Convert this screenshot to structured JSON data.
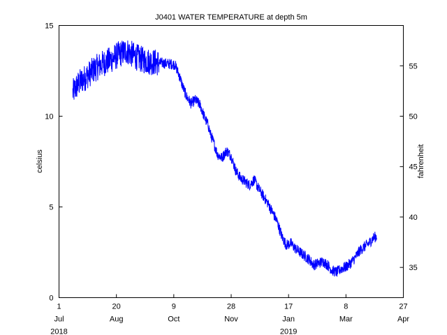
{
  "chart_data": {
    "type": "line",
    "title": "J0401 WATER TEMPERATURE at depth 5m",
    "ylabel": "celsius",
    "ylabel_right": "fahrenheit",
    "xlabel": "",
    "ylim": [
      0,
      15
    ],
    "ylim_right": [
      32,
      59
    ],
    "y_ticks": [
      0,
      5,
      10,
      15
    ],
    "y_ticks_right": [
      35,
      40,
      45,
      50,
      55
    ],
    "x_range": [
      "2018-07-01",
      "2019-04-27"
    ],
    "x_ticks": [
      {
        "date": "2018-07-01",
        "day": "1",
        "month": "Jul",
        "year": "2018"
      },
      {
        "date": "2018-08-20",
        "day": "20",
        "month": "Aug",
        "year": ""
      },
      {
        "date": "2018-10-09",
        "day": "9",
        "month": "Oct",
        "year": ""
      },
      {
        "date": "2018-11-28",
        "day": "28",
        "month": "Nov",
        "year": ""
      },
      {
        "date": "2019-01-17",
        "day": "17",
        "month": "Jan",
        "year": "2019"
      },
      {
        "date": "2019-03-08",
        "day": "8",
        "month": "Mar",
        "year": ""
      },
      {
        "date": "2019-04-27",
        "day": "27",
        "month": "Apr",
        "year": ""
      }
    ],
    "grid": false,
    "line_color": "#0000ff",
    "series": [
      {
        "name": "",
        "x": [
          "2018-07-13",
          "2018-07-18",
          "2018-07-25",
          "2018-08-01",
          "2018-08-08",
          "2018-08-15",
          "2018-08-22",
          "2018-08-29",
          "2018-09-05",
          "2018-09-12",
          "2018-09-19",
          "2018-09-26",
          "2018-10-03",
          "2018-10-10",
          "2018-10-14",
          "2018-10-17",
          "2018-10-20",
          "2018-10-24",
          "2018-10-28",
          "2018-11-01",
          "2018-11-05",
          "2018-11-08",
          "2018-11-10",
          "2018-11-13",
          "2018-11-16",
          "2018-11-20",
          "2018-11-24",
          "2018-11-28",
          "2018-12-02",
          "2018-12-06",
          "2018-12-10",
          "2018-12-14",
          "2018-12-18",
          "2018-12-22",
          "2018-12-26",
          "2018-12-30",
          "2019-01-03",
          "2019-01-07",
          "2019-01-11",
          "2019-01-15",
          "2019-01-19",
          "2019-01-23",
          "2019-01-27",
          "2019-01-31",
          "2019-02-04",
          "2019-02-08",
          "2019-02-12",
          "2019-02-16",
          "2019-02-20",
          "2019-02-24",
          "2019-02-28",
          "2019-03-04",
          "2019-03-08",
          "2019-03-12",
          "2019-03-16",
          "2019-03-20",
          "2019-03-24",
          "2019-03-28",
          "2019-04-01",
          "2019-04-04"
        ],
        "values": [
          11.3,
          11.8,
          12.2,
          12.6,
          12.9,
          13.1,
          13.4,
          13.6,
          13.3,
          13.1,
          13.0,
          12.95,
          12.9,
          12.85,
          12.2,
          11.6,
          11.1,
          10.7,
          10.9,
          10.6,
          9.9,
          9.5,
          9.0,
          8.5,
          7.9,
          7.7,
          8.1,
          7.8,
          7.0,
          6.6,
          6.4,
          6.2,
          6.5,
          6.0,
          5.6,
          5.2,
          4.7,
          4.2,
          3.4,
          2.9,
          3.0,
          2.7,
          2.5,
          2.3,
          2.1,
          1.8,
          1.9,
          2.0,
          1.8,
          1.5,
          1.4,
          1.6,
          1.7,
          1.9,
          2.2,
          2.6,
          2.8,
          3.0,
          3.3,
          3.4
        ]
      }
    ]
  }
}
